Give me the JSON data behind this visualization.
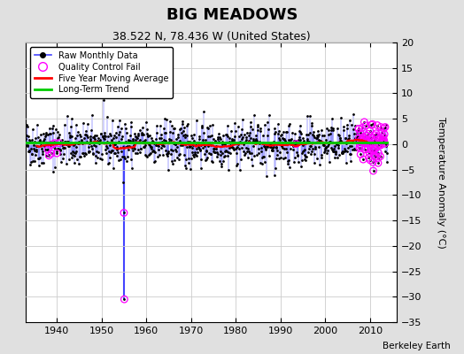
{
  "title": "BIG MEADOWS",
  "subtitle": "38.522 N, 78.436 W (United States)",
  "ylabel": "Temperature Anomaly (°C)",
  "watermark": "Berkeley Earth",
  "xlim": [
    1933,
    2016
  ],
  "ylim": [
    -35,
    20
  ],
  "yticks": [
    -35,
    -30,
    -25,
    -20,
    -15,
    -10,
    -5,
    0,
    5,
    10,
    15,
    20
  ],
  "xticks": [
    1940,
    1950,
    1960,
    1970,
    1980,
    1990,
    2000,
    2010
  ],
  "fig_bg_color": "#e0e0e0",
  "plot_bg_color": "#ffffff",
  "seed": 42,
  "start_year": 1933,
  "n_months": 972,
  "outlier_idx1_year": 1955.0,
  "outlier_val1": -13.5,
  "outlier_val2": -30.5,
  "trend_y": 0.3
}
